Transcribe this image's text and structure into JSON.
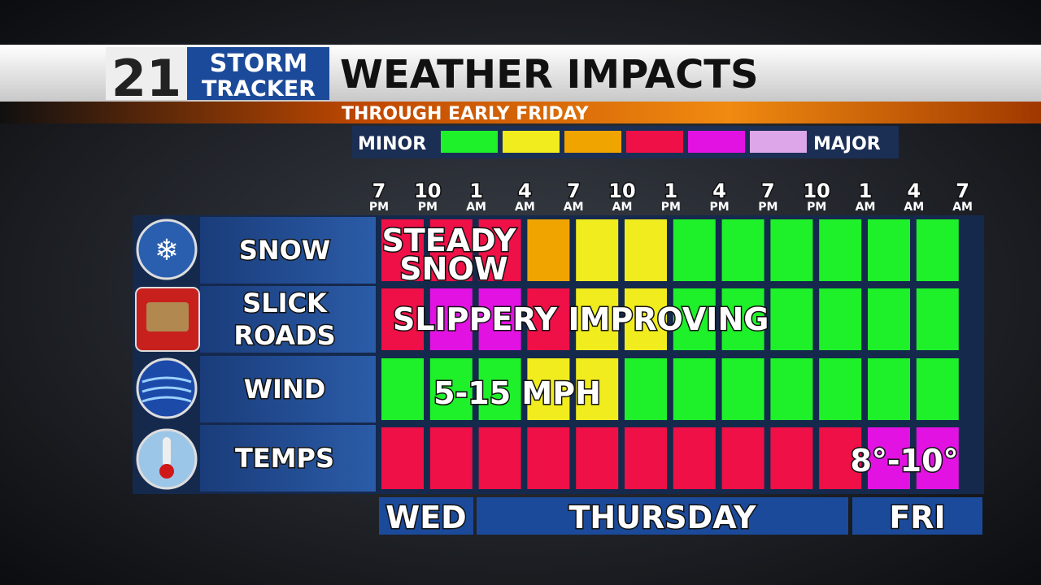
{
  "header": {
    "logo_number": "21",
    "logo_line1": "STORM",
    "logo_line2": "TRACKER",
    "title": "WEATHER IMPACTS",
    "subtitle": "THROUGH EARLY FRIDAY"
  },
  "legend": {
    "low": "MINOR",
    "high": "MAJOR",
    "colors": [
      "#1ef02a",
      "#f0ec1e",
      "#f0a400",
      "#ee1046",
      "#e212e2",
      "#dca6e8"
    ]
  },
  "times": [
    {
      "hour": "7",
      "period": "PM"
    },
    {
      "hour": "10",
      "period": "PM"
    },
    {
      "hour": "1",
      "period": "AM"
    },
    {
      "hour": "4",
      "period": "AM"
    },
    {
      "hour": "7",
      "period": "AM"
    },
    {
      "hour": "10",
      "period": "AM"
    },
    {
      "hour": "1",
      "period": "PM"
    },
    {
      "hour": "4",
      "period": "PM"
    },
    {
      "hour": "7",
      "period": "PM"
    },
    {
      "hour": "10",
      "period": "PM"
    },
    {
      "hour": "1",
      "period": "AM"
    },
    {
      "hour": "4",
      "period": "AM"
    },
    {
      "hour": "7",
      "period": "AM"
    }
  ],
  "rows": [
    {
      "label": [
        "SNOW"
      ],
      "note": [
        "STEADY",
        "SNOW"
      ],
      "cells": [
        "#ee1046",
        "#ee1046",
        "#ee1046",
        "#f0a400",
        "#f0ec1e",
        "#f0ec1e",
        "#1ef02a",
        "#1ef02a",
        "#1ef02a",
        "#1ef02a",
        "#1ef02a",
        "#1ef02a"
      ]
    },
    {
      "label": [
        "SLICK",
        "ROADS"
      ],
      "note": [
        "SLIPPERY",
        "IMPROVING"
      ],
      "cells": [
        "#ee1046",
        "#e212e2",
        "#e212e2",
        "#ee1046",
        "#f0ec1e",
        "#f0ec1e",
        "#1ef02a",
        "#1ef02a",
        "#1ef02a",
        "#1ef02a",
        "#1ef02a",
        "#1ef02a"
      ]
    },
    {
      "label": [
        "WIND"
      ],
      "note": [
        "5-15 MPH"
      ],
      "cells": [
        "#1ef02a",
        "#1ef02a",
        "#1ef02a",
        "#f0ec1e",
        "#f0ec1e",
        "#1ef02a",
        "#1ef02a",
        "#1ef02a",
        "#1ef02a",
        "#1ef02a",
        "#1ef02a",
        "#1ef02a"
      ]
    },
    {
      "label": [
        "TEMPS"
      ],
      "note": [
        "8°-10°"
      ],
      "cells": [
        "#ee1046",
        "#ee1046",
        "#ee1046",
        "#ee1046",
        "#ee1046",
        "#ee1046",
        "#ee1046",
        "#ee1046",
        "#ee1046",
        "#ee1046",
        "#e212e2",
        "#e212e2"
      ]
    }
  ],
  "days": [
    "WED",
    "THURSDAY",
    "FRI"
  ]
}
